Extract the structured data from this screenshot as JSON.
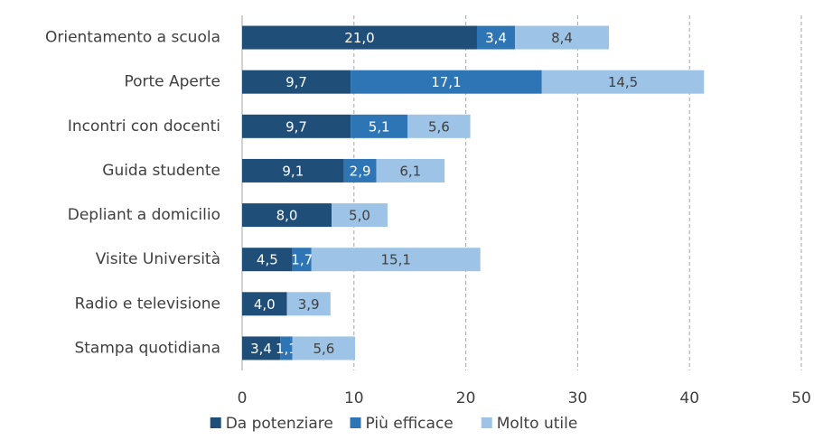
{
  "chart_data": {
    "type": "stacked-barh",
    "categories": [
      "Orientamento a scuola",
      "Porte Aperte",
      "Incontri con docenti",
      "Guida studente",
      "Depliant a domicilio",
      "Visite Università",
      "Radio e televisione",
      "Stampa quotidiana"
    ],
    "series": [
      {
        "name": "Da potenziare",
        "color": "#1f4e79",
        "values": [
          21.0,
          9.7,
          9.7,
          9.1,
          8.0,
          4.5,
          4.0,
          3.4
        ],
        "value_labels": [
          "21,0",
          "9,7",
          "9,7",
          "9,1",
          "8,0",
          "4,5",
          "4,0",
          "3,4"
        ]
      },
      {
        "name": "Più efficace",
        "color": "#2e75b6",
        "values": [
          3.4,
          17.1,
          5.1,
          2.9,
          null,
          1.7,
          null,
          1.1
        ],
        "value_labels": [
          "3,4",
          "17,1",
          "5,1",
          "2,9",
          null,
          "1,7",
          null,
          "1,1"
        ]
      },
      {
        "name": "Molto utile",
        "color": "#9dc3e6",
        "values": [
          8.4,
          14.5,
          5.6,
          6.1,
          5.0,
          15.1,
          3.9,
          5.6
        ],
        "value_labels": [
          "8,4",
          "14,5",
          "5,6",
          "6,1",
          "5,0",
          "15,1",
          "3,9",
          "5,6"
        ]
      }
    ],
    "xlim": [
      0,
      50
    ],
    "xticks": [
      0,
      10,
      20,
      30,
      40,
      50
    ],
    "grid": true,
    "legend": "bottom"
  }
}
